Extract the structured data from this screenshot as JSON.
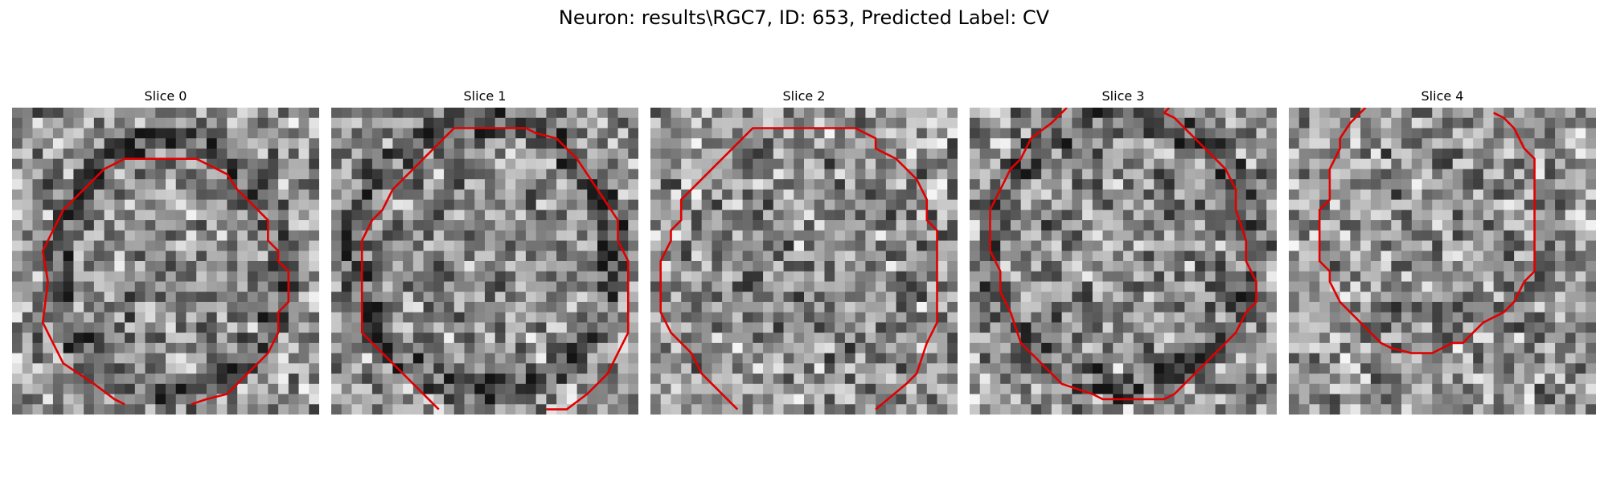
{
  "figure": {
    "title": "Neuron: results\\RGC7, ID: 653, Predicted Label: CV",
    "contour_color": "#e00000"
  },
  "panels": [
    {
      "title": "Slice 0"
    },
    {
      "title": "Slice 1"
    },
    {
      "title": "Slice 2"
    },
    {
      "title": "Slice 3"
    },
    {
      "title": "Slice 4"
    }
  ]
}
